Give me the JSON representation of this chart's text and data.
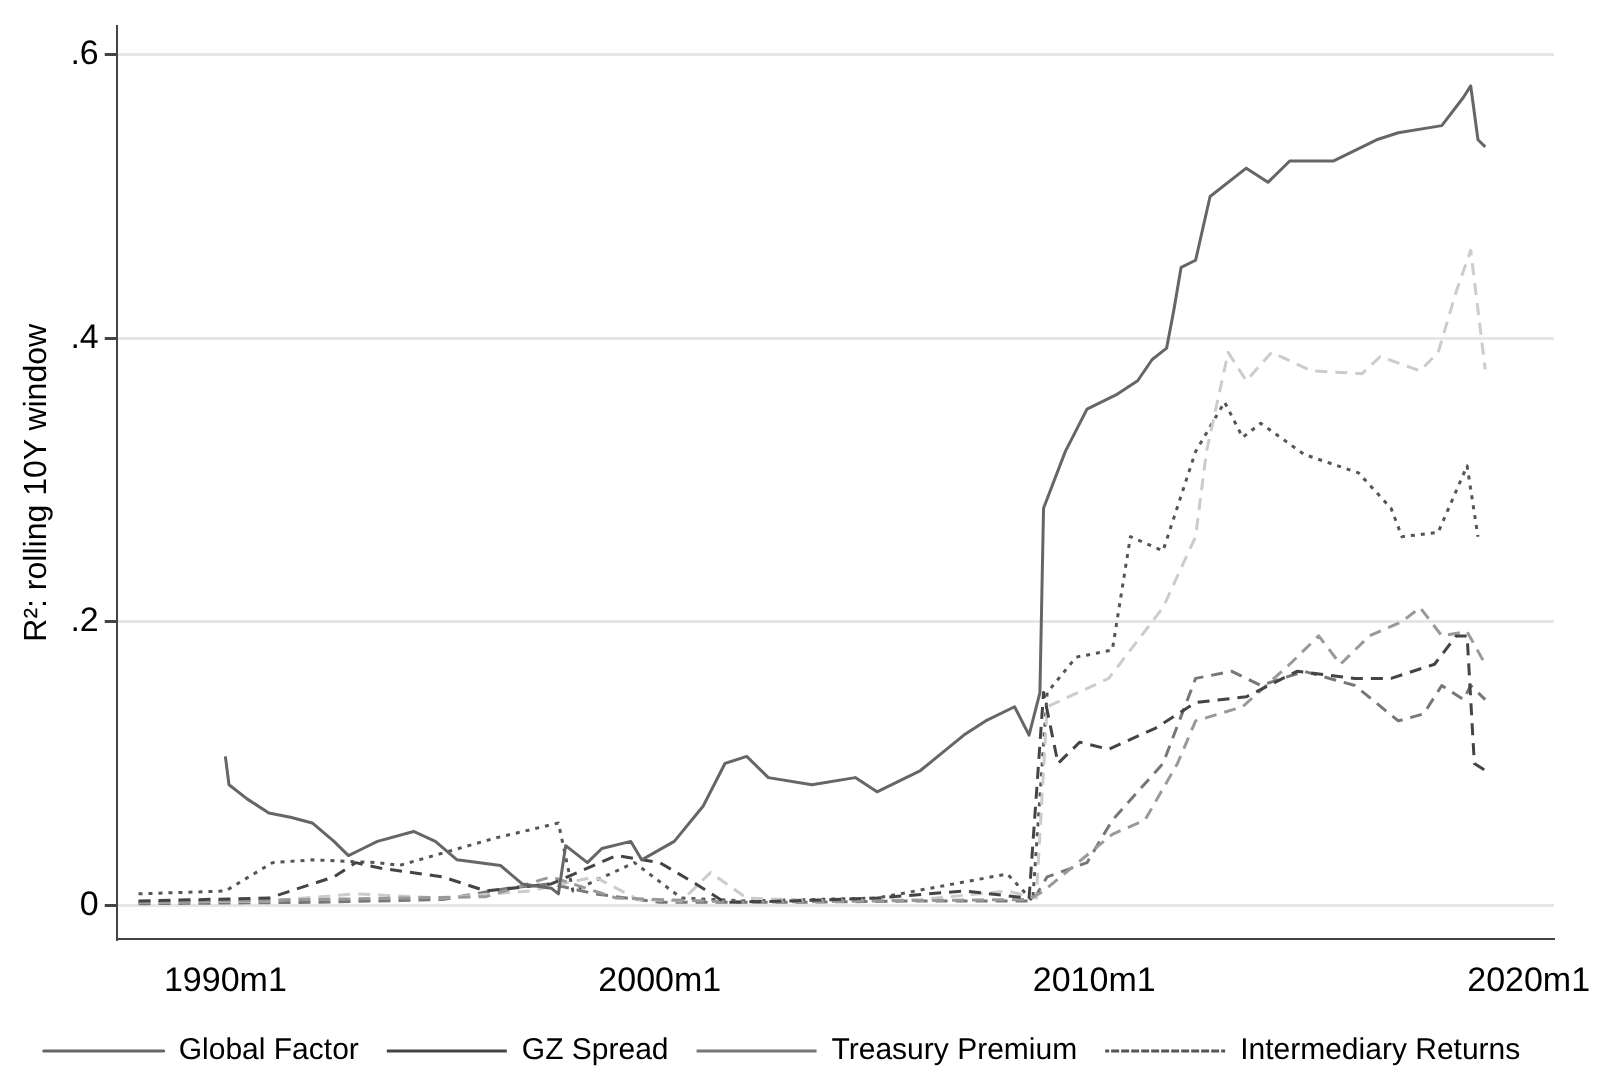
{
  "chart_data": {
    "type": "line",
    "ylabel": "R²: rolling 10Y window",
    "xlim": [
      "1987-07",
      "2020-08"
    ],
    "ylim": [
      -0.024,
      0.62
    ],
    "xticks": [
      {
        "value": "1990-01",
        "label": "1990m1"
      },
      {
        "value": "2000-01",
        "label": "2000m1"
      },
      {
        "value": "2010-01",
        "label": "2010m1"
      },
      {
        "value": "2020-01",
        "label": "2020m1"
      }
    ],
    "yticks": [
      0,
      {
        "value": 0.2,
        "label": ".2"
      },
      {
        "value": 0.4,
        "label": ".4"
      },
      {
        "value": 0.6,
        "label": ".6"
      }
    ],
    "grid": "y",
    "legend": "bottom",
    "marker": "none",
    "series": [
      {
        "name": "Global Factor",
        "color": "#666666",
        "line_style": "solid",
        "x": [
          "1990-01",
          "1990-02",
          "1990-07",
          "1991-01",
          "1991-07",
          "1992-01",
          "1992-07",
          "1992-11",
          "1993-03",
          "1993-07",
          "1994-05",
          "1994-11",
          "1995-05",
          "1996-05",
          "1996-11",
          "1997-07",
          "1997-09",
          "1997-11",
          "1998-05",
          "1998-09",
          "1999-05",
          "1999-08",
          "2000-05",
          "2001-01",
          "2001-07",
          "2002-01",
          "2002-07",
          "2003-07",
          "2004-07",
          "2005-01",
          "2006-01",
          "2007-01",
          "2007-07",
          "2008-03",
          "2008-07",
          "2008-10",
          "2008-11",
          "2009-05",
          "2009-11",
          "2010-07",
          "2011-01",
          "2011-05",
          "2011-09",
          "2011-11",
          "2012-01",
          "2012-05",
          "2012-09",
          "2013-07",
          "2014-01",
          "2014-07",
          "2015-07",
          "2016-07",
          "2017-01",
          "2018-01",
          "2018-07",
          "2018-09",
          "2018-11",
          "2019-01"
        ],
        "values": [
          0.105,
          0.085,
          0.075,
          0.065,
          0.062,
          0.058,
          0.045,
          0.035,
          0.04,
          0.045,
          0.052,
          0.045,
          0.032,
          0.028,
          0.015,
          0.012,
          0.008,
          0.042,
          0.03,
          0.04,
          0.045,
          0.032,
          0.045,
          0.07,
          0.1,
          0.105,
          0.09,
          0.085,
          0.09,
          0.08,
          0.095,
          0.12,
          0.13,
          0.14,
          0.12,
          0.15,
          0.28,
          0.32,
          0.35,
          0.36,
          0.37,
          0.385,
          0.393,
          0.42,
          0.45,
          0.455,
          0.5,
          0.52,
          0.51,
          0.525,
          0.525,
          0.54,
          0.545,
          0.55,
          0.57,
          0.578,
          0.54,
          0.535
        ]
      },
      {
        "name": "GZ Spread",
        "color": "#444444",
        "line_style": "dashed",
        "x": [
          "1988-01",
          "1991-01",
          "1992-07",
          "1993-01",
          "1993-08",
          "1995-01",
          "1996-01",
          "1997-07",
          "1999-01",
          "2000-01",
          "2000-11",
          "2001-07",
          "2003-01",
          "2005-01",
          "2007-01",
          "2008-07",
          "2008-11",
          "2009-03",
          "2009-09",
          "2010-05",
          "2011-06",
          "2012-05",
          "2013-07",
          "2014-09",
          "2016-01",
          "2016-11",
          "2017-11",
          "2018-05",
          "2018-08",
          "2018-10",
          "2019-01"
        ],
        "values": [
          0.003,
          0.005,
          0.02,
          0.03,
          0.026,
          0.02,
          0.01,
          0.015,
          0.035,
          0.03,
          0.015,
          0.002,
          0.003,
          0.005,
          0.01,
          0.005,
          0.15,
          0.1,
          0.115,
          0.11,
          0.125,
          0.143,
          0.147,
          0.165,
          0.16,
          0.16,
          0.17,
          0.19,
          0.19,
          0.1,
          0.095
        ]
      },
      {
        "color": "#999999",
        "line_style": "dashed",
        "x": [
          "1988-01",
          "1992-01",
          "1996-01",
          "1997-07",
          "1999-01",
          "2002-01",
          "2005-01",
          "2008-07",
          "2008-11",
          "2010-06",
          "2011-03",
          "2011-12",
          "2012-05",
          "2013-06",
          "2014-07",
          "2015-03",
          "2015-09",
          "2016-05",
          "2017-02",
          "2017-07",
          "2018-01",
          "2018-08",
          "2019-01"
        ],
        "values": [
          0.002,
          0.004,
          0.006,
          0.02,
          0.005,
          0.002,
          0.003,
          0.004,
          0.01,
          0.05,
          0.06,
          0.1,
          0.13,
          0.14,
          0.17,
          0.19,
          0.17,
          0.19,
          0.2,
          0.21,
          0.19,
          0.193,
          0.17
        ]
      },
      {
        "color": "#cccccc",
        "line_style": "dashed",
        "x": [
          "1988-01",
          "1991-01",
          "1993-01",
          "1995-01",
          "1997-01",
          "1998-07",
          "1999-07",
          "2000-07",
          "2001-03",
          "2002-01",
          "2004-01",
          "2006-01",
          "2008-01",
          "2008-09",
          "2008-12",
          "2010-05",
          "2011-08",
          "2012-05",
          "2012-08",
          "2013-02",
          "2013-07",
          "2014-02",
          "2015-01",
          "2016-03",
          "2016-08",
          "2017-07",
          "2017-12",
          "2018-05",
          "2018-09",
          "2019-01"
        ],
        "values": [
          0.002,
          0.003,
          0.008,
          0.005,
          0.01,
          0.02,
          0.004,
          0.003,
          0.023,
          0.005,
          0.003,
          0.004,
          0.01,
          0.005,
          0.14,
          0.16,
          0.21,
          0.26,
          0.32,
          0.39,
          0.37,
          0.39,
          0.377,
          0.375,
          0.387,
          0.377,
          0.39,
          0.433,
          0.462,
          0.378
        ]
      },
      {
        "name": "Treasury Premium",
        "color": "#777777",
        "line_style": "dashed",
        "x": [
          "1988-01",
          "1992-01",
          "1995-01",
          "1996-07",
          "1997-07",
          "1998-07",
          "2000-01",
          "2003-01",
          "2006-01",
          "2008-08",
          "2008-12",
          "2009-11",
          "2010-06",
          "2011-01",
          "2011-08",
          "2012-05",
          "2013-03",
          "2013-11",
          "2014-11",
          "2016-01",
          "2017-01",
          "2017-08",
          "2018-01",
          "2018-07",
          "2018-09",
          "2019-01"
        ],
        "values": [
          0.001,
          0.002,
          0.004,
          0.012,
          0.015,
          0.008,
          0.002,
          0.002,
          0.003,
          0.003,
          0.02,
          0.03,
          0.06,
          0.08,
          0.1,
          0.16,
          0.165,
          0.155,
          0.165,
          0.155,
          0.13,
          0.135,
          0.155,
          0.145,
          0.155,
          0.145
        ]
      },
      {
        "name": "Intermediary Returns",
        "color": "#555555",
        "line_style": "dotted",
        "x": [
          "1988-01",
          "1990-01",
          "1991-02",
          "1992-01",
          "1993-07",
          "1994-01",
          "1996-03",
          "1997-09",
          "1998-01",
          "1999-06",
          "2000-07",
          "2002-01",
          "2005-01",
          "2008-01",
          "2008-08",
          "2008-12",
          "2009-08",
          "2010-06",
          "2010-11",
          "2011-08",
          "2012-05",
          "2013-01",
          "2013-06",
          "2013-11",
          "2014-11",
          "2016-02",
          "2016-11",
          "2017-02",
          "2017-12",
          "2018-08",
          "2018-11"
        ],
        "values": [
          0.008,
          0.01,
          0.03,
          0.032,
          0.03,
          0.028,
          0.047,
          0.058,
          0.01,
          0.03,
          0.005,
          0.003,
          0.005,
          0.022,
          0.003,
          0.15,
          0.175,
          0.18,
          0.26,
          0.25,
          0.32,
          0.355,
          0.33,
          0.34,
          0.318,
          0.305,
          0.28,
          0.26,
          0.263,
          0.31,
          0.26
        ]
      }
    ]
  }
}
